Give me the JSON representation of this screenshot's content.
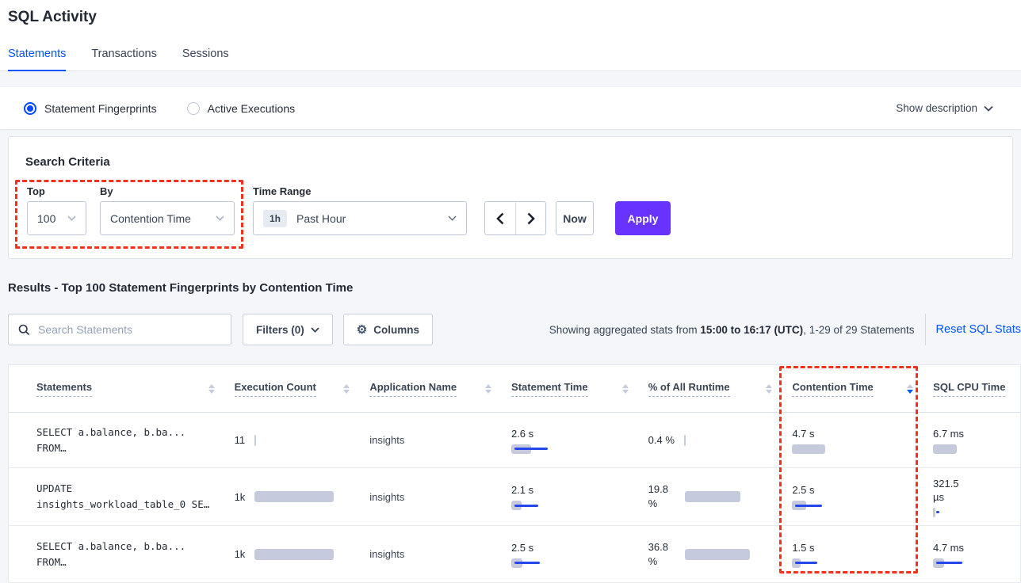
{
  "page": {
    "title": "SQL Activity"
  },
  "tabs": [
    {
      "label": "Statements",
      "active": true
    },
    {
      "label": "Transactions",
      "active": false
    },
    {
      "label": "Sessions",
      "active": false
    }
  ],
  "view_toggle": {
    "options": [
      {
        "label": "Statement Fingerprints",
        "selected": true
      },
      {
        "label": "Active Executions",
        "selected": false
      }
    ],
    "show_description_label": "Show description"
  },
  "search_criteria": {
    "heading": "Search Criteria",
    "top": {
      "label": "Top",
      "value": "100"
    },
    "by": {
      "label": "By",
      "value": "Contention Time"
    },
    "time_range": {
      "label": "Time Range",
      "badge": "1h",
      "value": "Past Hour"
    },
    "prev_label": "‹",
    "next_label": "›",
    "now_label": "Now",
    "apply_label": "Apply"
  },
  "results": {
    "heading": "Results - Top 100 Statement Fingerprints by Contention Time",
    "search_placeholder": "Search Statements",
    "filters_label": "Filters (0)",
    "columns_label": "Columns",
    "stats_prefix": "Showing aggregated stats from ",
    "stats_bold": "15:00 to 16:17 (UTC)",
    "stats_suffix": ", 1-29 of 29 Statements",
    "reset_label": "Reset SQL Stats"
  },
  "table": {
    "headers": [
      {
        "label": "Statements",
        "sort": "none"
      },
      {
        "label": "Execution Count",
        "sort": "none"
      },
      {
        "label": "Application Name",
        "sort": "none"
      },
      {
        "label": "Statement Time",
        "sort": "none"
      },
      {
        "label": "% of All Runtime",
        "sort": "none"
      },
      {
        "label": "Contention Time",
        "sort": "desc"
      },
      {
        "label": "SQL CPU Time",
        "sort": "hidden"
      }
    ],
    "rows": [
      {
        "statement_line1": "SELECT a.balance, b.ba...",
        "statement_line2": "FROM…",
        "execution_count": {
          "value": "11",
          "bar_gray": 2,
          "bar_blue": 0
        },
        "application": "insights",
        "statement_time": {
          "value": "2.6 s",
          "bar_gray": 25,
          "bar_blue": 42
        },
        "pct_runtime": {
          "value": "0.4 %",
          "bar_gray": 2,
          "bar_blue": 0
        },
        "contention_time": {
          "value": "4.7 s",
          "bar_gray": 42,
          "bar_blue": 0
        },
        "sql_cpu_time": {
          "value": "6.7 ms",
          "bar_gray": 30,
          "bar_blue": 0
        }
      },
      {
        "statement_line1": "UPDATE",
        "statement_line2": "insights_workload_table_0 SE…",
        "execution_count": {
          "value": "1k",
          "bar_gray": 100,
          "bar_blue": 0
        },
        "application": "insights",
        "statement_time": {
          "value": "2.1 s",
          "bar_gray": 13,
          "bar_blue": 30
        },
        "pct_runtime": {
          "value": "19.8 %",
          "bar_gray": 70,
          "bar_blue": 0
        },
        "contention_time": {
          "value": "2.5 s",
          "bar_gray": 18,
          "bar_blue": 34
        },
        "sql_cpu_time": {
          "value": "321.5 µs",
          "bar_gray": 3,
          "bar_blue": 4
        }
      },
      {
        "statement_line1": "SELECT a.balance, b.ba...",
        "statement_line2": "FROM…",
        "execution_count": {
          "value": "1k",
          "bar_gray": 100,
          "bar_blue": 0
        },
        "application": "insights",
        "statement_time": {
          "value": "2.5 s",
          "bar_gray": 14,
          "bar_blue": 32
        },
        "pct_runtime": {
          "value": "36.8 %",
          "bar_gray": 82,
          "bar_blue": 0
        },
        "contention_time": {
          "value": "1.5 s",
          "bar_gray": 11,
          "bar_blue": 28
        },
        "sql_cpu_time": {
          "value": "4.7 ms",
          "bar_gray": 14,
          "bar_blue": 33
        }
      }
    ]
  },
  "colors": {
    "accent_blue": "#0055ff",
    "apply_purple": "#6933ff",
    "annotation_red": "#f5301d",
    "bar_gray": "#c5cbdc",
    "bar_blue": "#2546eb"
  }
}
